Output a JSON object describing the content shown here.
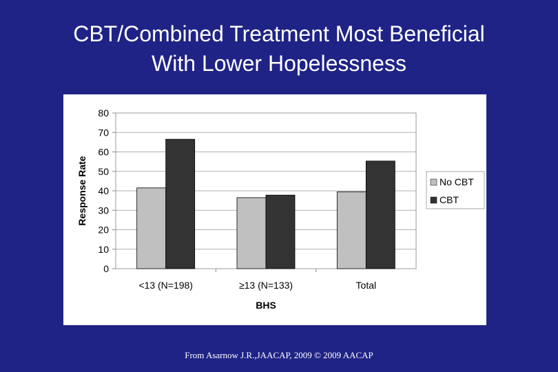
{
  "slide": {
    "title_line1": "CBT/Combined Treatment Most Beneficial",
    "title_line2": "With Lower Hopelessness",
    "source": "From Asarnow J.R.,JAACAP, 2009 © 2009 AACAP"
  },
  "chart_data": {
    "type": "bar",
    "categories": [
      "<13 (N=198)",
      "≥13 (N=133)",
      "Total"
    ],
    "series": [
      {
        "name": "No CBT",
        "values": [
          41.5,
          36.5,
          39.5
        ],
        "color": "#c0c0c0"
      },
      {
        "name": "CBT",
        "values": [
          66.5,
          37.8,
          55.3
        ],
        "color": "#333333"
      }
    ],
    "xlabel": "BHS",
    "ylabel": "Response Rate",
    "ylim": [
      0,
      80
    ],
    "yticks": [
      "0",
      "10",
      "20",
      "30",
      "40",
      "50",
      "60",
      "70",
      "80"
    ],
    "grid": true,
    "legend_position": "right"
  }
}
